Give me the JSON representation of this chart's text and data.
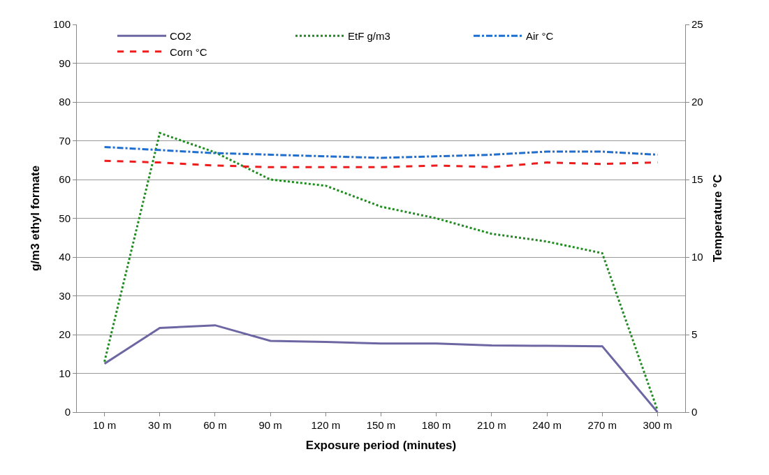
{
  "chart_data": {
    "type": "line",
    "xlabel": "Exposure period (minutes)",
    "ylabel": "g/m3 ethyl formate",
    "y2label": "Temperature °C",
    "categories": [
      "10 m",
      "30 m",
      "60 m",
      "90 m",
      "120 m",
      "150 m",
      "180 m",
      "210 m",
      "240 m",
      "270 m",
      "300 m"
    ],
    "series": [
      {
        "name": "CO2",
        "color": "#6c67a3",
        "line_style": "solid",
        "values": [
          12.5,
          21.7,
          22.4,
          18.4,
          18.1,
          17.7,
          17.7,
          17.2,
          17.1,
          17.0,
          0
        ]
      },
      {
        "name": "EtF g/m3",
        "color": "#1e8c1e",
        "line_style": "dotted",
        "values": [
          13,
          72,
          67,
          60,
          58.4,
          53,
          50,
          46,
          44,
          41,
          0.5
        ]
      },
      {
        "name": "Air °C",
        "color": "#1f6fd0",
        "line_style": "dashdot",
        "axis": "y2",
        "values": [
          17.1,
          16.9,
          16.7,
          16.6,
          16.5,
          16.4,
          16.5,
          16.6,
          16.8,
          16.8,
          16.6
        ]
      },
      {
        "name": "Corn °C",
        "color": "#ee1c1c",
        "line_style": "dashed",
        "axis": "y2",
        "values": [
          16.2,
          16.1,
          15.9,
          15.8,
          15.8,
          15.8,
          15.9,
          15.8,
          16.1,
          16.0,
          16.1
        ]
      }
    ],
    "ylim": [
      0,
      100
    ],
    "yticks": [
      0,
      10,
      20,
      30,
      40,
      50,
      60,
      70,
      80,
      90,
      100
    ],
    "y2lim": [
      0,
      25
    ],
    "y2ticks": [
      0,
      5,
      10,
      15,
      20,
      25
    ],
    "grid": "y",
    "legend": "top",
    "marker": "none"
  }
}
